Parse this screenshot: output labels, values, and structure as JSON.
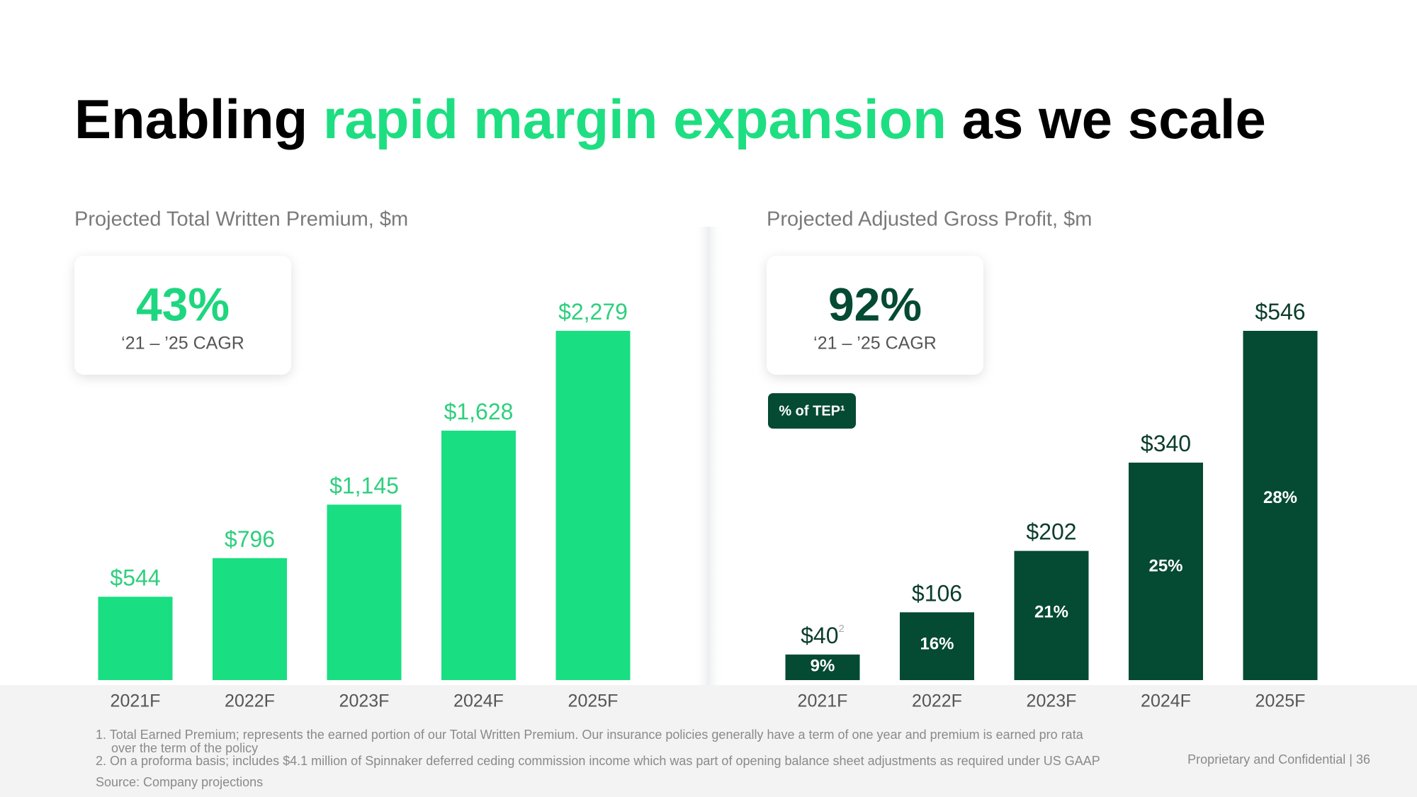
{
  "title": [
    "Enabling",
    "rapid margin expansion",
    "as we scale"
  ],
  "chart_data": [
    {
      "type": "bar",
      "title": "Projected Total Written Premium, $m",
      "categories": [
        "2021F",
        "2022F",
        "2023F",
        "2024F",
        "2025F"
      ],
      "values": [
        544,
        796,
        1145,
        1628,
        2279
      ],
      "value_labels": [
        "$544",
        "$796",
        "$1,145",
        "$1,628",
        "$2,279"
      ],
      "color": "#1ade82",
      "label_color": "#2ecf7e",
      "kpi": {
        "label": "43%",
        "caption": "‘21 – ’25 CAGR",
        "color": "#1ed67f"
      }
    },
    {
      "type": "bar",
      "title": "Projected Adjusted Gross Profit, $m",
      "categories": [
        "2021F",
        "2022F",
        "2023F",
        "2024F",
        "2025F"
      ],
      "values": [
        40,
        106,
        202,
        340,
        546
      ],
      "value_labels": [
        "$40",
        "$106",
        "$202",
        "$340",
        "$546"
      ],
      "value_label_notes": [
        "2",
        null,
        null,
        null,
        null
      ],
      "color": "#054a33",
      "label_color": "#0b3d2b",
      "kpi": {
        "label": "92%",
        "caption": "‘21 – ’25 CAGR",
        "color": "#054a33"
      },
      "annotation": "% of TEP¹",
      "tep_share": {
        "values": [
          9,
          16,
          21,
          25,
          28
        ],
        "value_labels": [
          "9%",
          "16%",
          "21%",
          "25%",
          "28%"
        ]
      }
    }
  ],
  "footnotes": [
    "Total Earned Premium; represents the earned portion of our Total Written Premium. Our insurance policies generally have a term of one year and premium is earned pro rata",
    "over the term of the policy",
    "On a proforma basis; includes $4.1 million of Spinnaker deferred ceding commission income which was part of opening balance sheet adjustments as required under US GAAP"
  ],
  "source": "Source: Company projections",
  "confidential": "Proprietary and Confidential | 36"
}
